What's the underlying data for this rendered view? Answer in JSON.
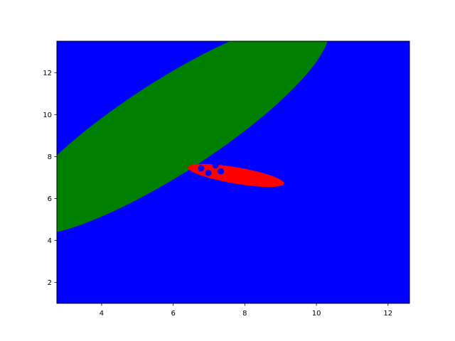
{
  "chart_data": {
    "type": "contour",
    "title": "",
    "xlabel": "",
    "ylabel": "",
    "xlim": [
      2.75,
      12.6
    ],
    "ylim": [
      1.0,
      13.5
    ],
    "xticks": [
      4,
      6,
      8,
      10,
      12
    ],
    "yticks": [
      2,
      4,
      6,
      8,
      10,
      12
    ],
    "xtick_labels": [
      "4",
      "6",
      "8",
      "10",
      "12"
    ],
    "ytick_labels": [
      "2",
      "4",
      "6",
      "8",
      "10",
      "12"
    ],
    "grid": false,
    "legend": "none",
    "background_region": {
      "color": "#0000ff"
    },
    "regions": [
      {
        "color": "#008000",
        "shape": "ellipse",
        "center": [
          5.9,
          9.4
        ],
        "semi_major": 6.6,
        "semi_minor": 1.75,
        "angle_deg": 50
      },
      {
        "color": "#ff0000",
        "shape": "ellipse",
        "center": [
          7.75,
          7.1
        ],
        "semi_major": 1.4,
        "semi_minor": 0.38,
        "angle_deg": -17
      }
    ],
    "points": {
      "color": "#0000ff",
      "x": [
        6.78,
        6.98,
        7.18,
        7.33,
        7.58
      ],
      "y": [
        7.44,
        7.22,
        7.58,
        7.3,
        7.83
      ]
    }
  },
  "colors": {
    "axes_frame": "#000000",
    "figure_background": "#ffffff"
  }
}
